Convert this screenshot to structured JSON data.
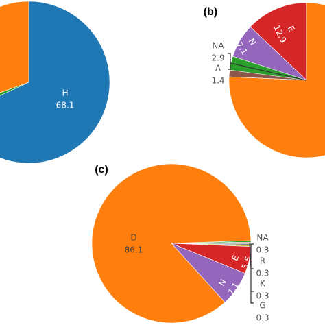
{
  "chart_data": [
    {
      "type": "pie",
      "categories": [
        "H",
        null,
        null
      ],
      "values": [
        68.1,
        1.4,
        30.5
      ],
      "colors": [
        "#1f77b4",
        "#2ca02c",
        "#ff7f0e"
      ]
    },
    {
      "type": "pie",
      "title": "(b)",
      "categories": [
        "E",
        "N",
        "NA",
        "A",
        null
      ],
      "values": [
        12.9,
        7.1,
        2.9,
        1.4,
        75.7
      ],
      "colors": [
        "#d62728",
        "#9467bd",
        "#2ca02c",
        "#8c564b",
        "#ff7f0e"
      ]
    },
    {
      "type": "pie",
      "title": "(c)",
      "categories": [
        "NA",
        "R",
        "K",
        "G",
        "E",
        "N",
        "D"
      ],
      "values": [
        0.3,
        0.3,
        0.3,
        0.3,
        5.5,
        7.1,
        86.1
      ],
      "colors": [
        "#2ca02c",
        "#8c564b",
        "#7f7f7f",
        "#bcbd22",
        "#d62728",
        "#9467bd",
        "#ff7f0e"
      ]
    }
  ]
}
